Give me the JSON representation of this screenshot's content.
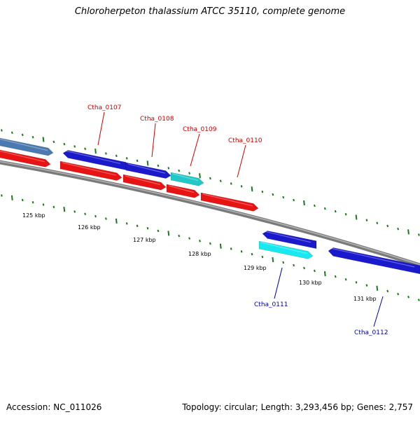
{
  "title": "Chloroherpeton thalassium ATCC 35110, complete genome",
  "accession": "Accession: NC_011026",
  "summary": "Topology: circular; Length: 3,293,456 bp; Genes: 2,757",
  "colors": {
    "backbone": "#7a7a7a",
    "forward_gene": "#1a1acc",
    "forward_other": "#4a7ab0",
    "forward_cyan": "#22c8c8",
    "reverse_gene": "#e81414",
    "reverse_cyan": "#18e8f0",
    "tick": "#1a7a1a",
    "label_top": "#cc0000",
    "label_bottom": "#0000aa"
  },
  "scale_labels": [
    "125 kbp",
    "126 kbp",
    "127 kbp",
    "128 kbp",
    "129 kbp",
    "130 kbp",
    "131 kbp"
  ],
  "gene_labels": {
    "top": [
      "Ctha_0107",
      "Ctha_0108",
      "Ctha_0109",
      "Ctha_0110"
    ],
    "bottom": [
      "Ctha_0111",
      "Ctha_0112"
    ]
  }
}
